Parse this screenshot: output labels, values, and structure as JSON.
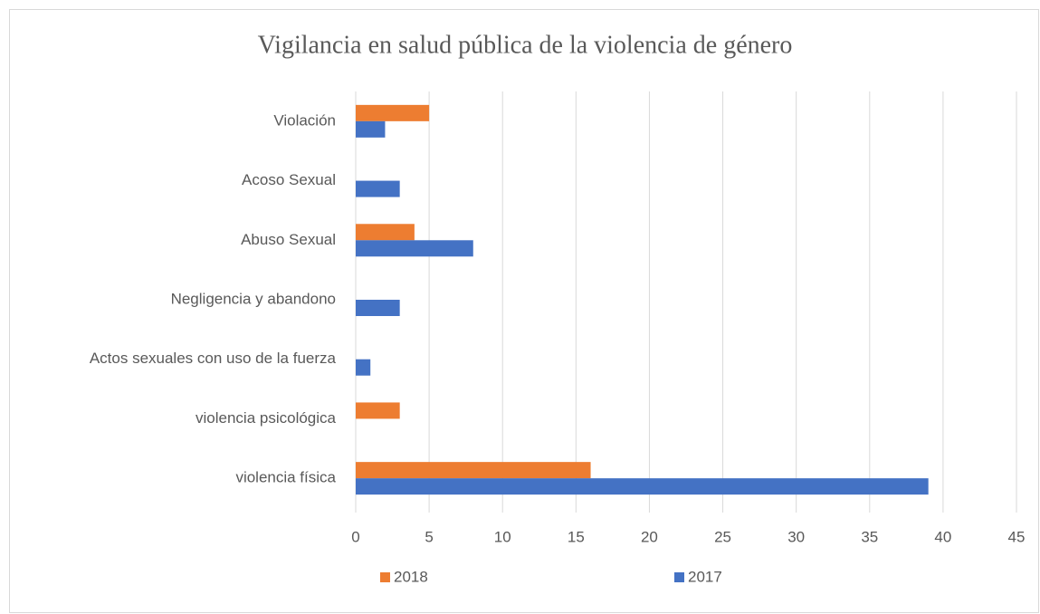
{
  "chart_data": {
    "type": "barh",
    "title": "Vigilancia en salud pública de la violencia de género",
    "categories": [
      "Violación",
      "Acoso Sexual",
      "Abuso Sexual",
      "Negligencia y abandono",
      "Actos sexuales con uso de la fuerza",
      "violencia psicológica",
      "violencia física"
    ],
    "series": [
      {
        "name": "2018",
        "color": "#ed7d31",
        "values": [
          5,
          null,
          4,
          null,
          null,
          3,
          16
        ]
      },
      {
        "name": "2017",
        "color": "#4472c4",
        "values": [
          2,
          3,
          8,
          3,
          1,
          null,
          39
        ]
      }
    ],
    "xlim": [
      0,
      45
    ],
    "xticks": [
      0,
      5,
      10,
      15,
      20,
      25,
      30,
      35,
      40,
      45
    ],
    "grid": true
  }
}
